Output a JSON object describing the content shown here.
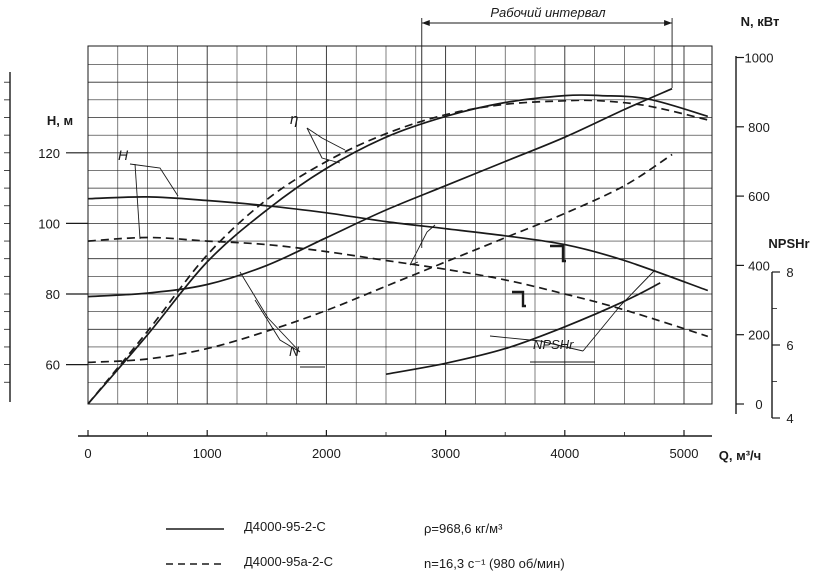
{
  "chart_data": {
    "type": "line",
    "working_interval_label": "Рабочий интервал",
    "working_interval": [
      2800,
      4900
    ],
    "x_axis": {
      "label": "Q, м³/ч",
      "ticks": [
        0,
        1000,
        2000,
        3000,
        4000,
        5000
      ],
      "range": [
        0,
        5200
      ]
    },
    "y_axes": {
      "head": {
        "label": "H, м",
        "ticks": [
          60,
          80,
          100,
          120
        ],
        "range": [
          50,
          150
        ]
      },
      "power": {
        "label": "N, кВт",
        "ticks": [
          0,
          200,
          400,
          600,
          800,
          1000
        ],
        "range": [
          0,
          1000
        ]
      },
      "npsh": {
        "label": "NPSHr",
        "ticks": [
          4,
          6,
          8
        ],
        "range": [
          4,
          8
        ]
      }
    },
    "curve_labels": {
      "head": "H",
      "efficiency": "η",
      "power": "N",
      "npsh": "NPSHr"
    },
    "series": [
      {
        "name": "Д4000-95-2-С",
        "curve": "H",
        "axis": "head",
        "style": "solid",
        "x": [
          0,
          500,
          1000,
          1500,
          2000,
          2500,
          3000,
          3500,
          4000,
          4500,
          5200
        ],
        "y": [
          107,
          107.5,
          106.5,
          105,
          103,
          100.5,
          98.5,
          96.5,
          94,
          89.5,
          81
        ]
      },
      {
        "name": "Д4000-95а-2-С",
        "curve": "H",
        "axis": "head",
        "style": "dashed",
        "x": [
          0,
          500,
          1000,
          1500,
          2000,
          2500,
          3000,
          3500,
          4000,
          4500,
          5200
        ],
        "y": [
          95,
          96,
          95,
          94,
          92,
          89.5,
          87,
          84,
          80,
          75.5,
          68
        ]
      },
      {
        "name": "Д4000-95-2-С",
        "curve": "η",
        "axis": "power",
        "style": "solid",
        "x": [
          0,
          500,
          1000,
          1500,
          2000,
          2500,
          3000,
          3500,
          4000,
          4300,
          4700,
          5200
        ],
        "y": [
          0,
          200,
          410,
          560,
          680,
          770,
          830,
          870,
          890,
          890,
          880,
          830
        ]
      },
      {
        "name": "Д4000-95а-2-С",
        "curve": "η",
        "axis": "power",
        "style": "dashed",
        "x": [
          0,
          500,
          1000,
          1500,
          2000,
          2500,
          3000,
          3500,
          4000,
          4300,
          4700,
          5200
        ],
        "y": [
          0,
          210,
          430,
          590,
          700,
          780,
          835,
          865,
          875,
          875,
          860,
          820
        ]
      },
      {
        "name": "Д4000-95-2-С",
        "curve": "N",
        "axis": "power",
        "style": "solid",
        "x": [
          0,
          500,
          1000,
          1500,
          2000,
          2500,
          3000,
          3500,
          4000,
          4500,
          4900
        ],
        "y": [
          310,
          320,
          345,
          400,
          480,
          560,
          630,
          700,
          770,
          850,
          910
        ]
      },
      {
        "name": "Д4000-95а-2-С",
        "curve": "N",
        "axis": "power",
        "style": "dashed",
        "x": [
          0,
          500,
          1000,
          1500,
          2000,
          2500,
          3000,
          3500,
          4000,
          4500,
          4900
        ],
        "y": [
          120,
          130,
          160,
          210,
          270,
          340,
          410,
          480,
          550,
          630,
          720
        ]
      },
      {
        "name": "Д4000-95-2-С",
        "curve": "NPSHr",
        "axis": "npsh",
        "style": "solid",
        "x": [
          2500,
          3000,
          3500,
          4000,
          4500,
          4800
        ],
        "y": [
          5.2,
          5.5,
          5.9,
          6.5,
          7.2,
          7.7
        ]
      }
    ]
  },
  "legend": [
    {
      "style": "solid",
      "label": "Д4000-95-2-С"
    },
    {
      "style": "dashed",
      "label": "Д4000-95а-2-С"
    }
  ],
  "notes": {
    "density_label": "ρ=968,6 кг/м³",
    "speed_label": "n=16,3 с⁻¹ (980 об/мин)"
  }
}
